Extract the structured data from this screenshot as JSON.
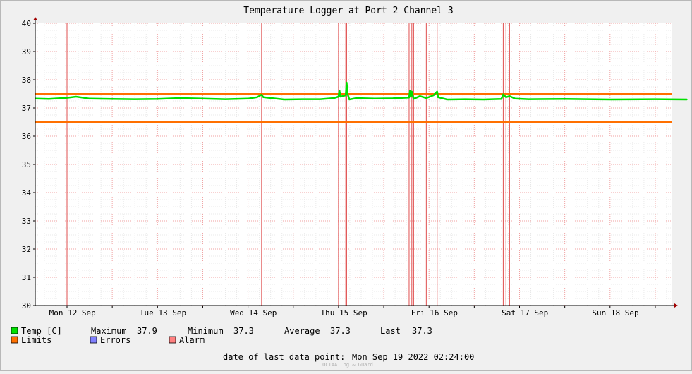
{
  "chart_data": {
    "type": "line",
    "title": "Temperature Logger at Port 2 Channel 3",
    "ylim": [
      30,
      40
    ],
    "y_ticks": [
      30,
      31,
      32,
      33,
      34,
      35,
      36,
      37,
      38,
      39,
      40
    ],
    "x_labels": [
      "Mon 12 Sep",
      "Tue 13 Sep",
      "Wed 14 Sep",
      "Thu 15 Sep",
      "Fri 16 Sep",
      "Sat 17 Sep",
      "Sun 18 Sep"
    ],
    "grid": true,
    "limits": [
      37.5,
      36.5
    ],
    "alarm_days": [
      0.0,
      2.15,
      3.0,
      3.08,
      3.09,
      3.78,
      3.8,
      3.81,
      3.83,
      3.97,
      4.09,
      4.82,
      4.85,
      4.89
    ],
    "series": [
      {
        "name": "Temp [C]",
        "color": "#00e000",
        "points": [
          [
            -0.35,
            37.33
          ],
          [
            -0.2,
            37.32
          ],
          [
            0.0,
            37.36
          ],
          [
            0.1,
            37.4
          ],
          [
            0.25,
            37.33
          ],
          [
            0.5,
            37.32
          ],
          [
            0.75,
            37.31
          ],
          [
            1.0,
            37.32
          ],
          [
            1.25,
            37.35
          ],
          [
            1.5,
            37.33
          ],
          [
            1.75,
            37.31
          ],
          [
            2.0,
            37.33
          ],
          [
            2.1,
            37.38
          ],
          [
            2.15,
            37.47
          ],
          [
            2.17,
            37.38
          ],
          [
            2.4,
            37.3
          ],
          [
            2.6,
            37.31
          ],
          [
            2.8,
            37.31
          ],
          [
            2.95,
            37.35
          ],
          [
            3.0,
            37.4
          ],
          [
            3.01,
            37.62
          ],
          [
            3.02,
            37.4
          ],
          [
            3.08,
            37.45
          ],
          [
            3.09,
            37.9
          ],
          [
            3.1,
            37.5
          ],
          [
            3.12,
            37.3
          ],
          [
            3.2,
            37.35
          ],
          [
            3.4,
            37.33
          ],
          [
            3.6,
            37.34
          ],
          [
            3.78,
            37.37
          ],
          [
            3.79,
            37.62
          ],
          [
            3.8,
            37.4
          ],
          [
            3.81,
            37.58
          ],
          [
            3.83,
            37.32
          ],
          [
            3.9,
            37.42
          ],
          [
            3.97,
            37.35
          ],
          [
            4.05,
            37.45
          ],
          [
            4.09,
            37.58
          ],
          [
            4.1,
            37.38
          ],
          [
            4.2,
            37.3
          ],
          [
            4.4,
            37.31
          ],
          [
            4.6,
            37.3
          ],
          [
            4.8,
            37.32
          ],
          [
            4.82,
            37.48
          ],
          [
            4.85,
            37.38
          ],
          [
            4.89,
            37.42
          ],
          [
            4.95,
            37.33
          ],
          [
            5.1,
            37.31
          ],
          [
            5.5,
            37.32
          ],
          [
            6.0,
            37.3
          ],
          [
            6.5,
            37.31
          ],
          [
            6.85,
            37.3
          ]
        ]
      }
    ],
    "legend": [
      {
        "label": "Temp [C]",
        "color": "#00e000"
      },
      {
        "label": "Limits",
        "color": "#ff7000"
      },
      {
        "label": "Errors",
        "color": "#8080ff"
      },
      {
        "label": "Alarm",
        "color": "#ff8080"
      }
    ],
    "stats": {
      "maximum_label": "Maximum",
      "maximum": "37.9",
      "minimum_label": "Minimum",
      "minimum": "37.3",
      "average_label": "Average",
      "average": "37.3",
      "last_label": "Last",
      "last": "37.3"
    },
    "last_data_point_label": "date of last data point:",
    "last_data_point": "Mon Sep 19 2022 02:24:00",
    "credit": "OCTAA Log & Guard"
  }
}
